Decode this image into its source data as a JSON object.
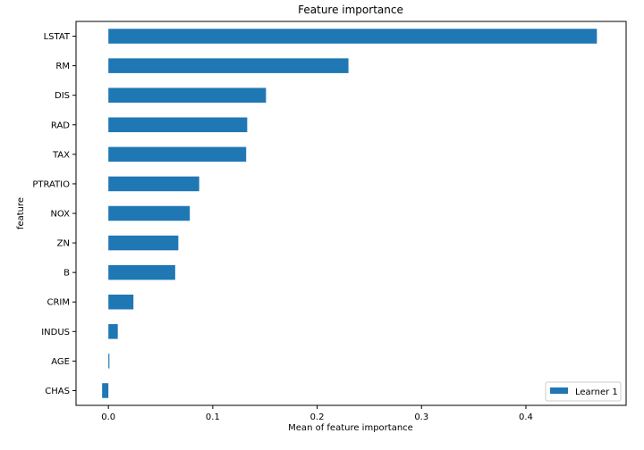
{
  "chart_data": {
    "type": "bar",
    "orientation": "horizontal",
    "title": "Feature importance",
    "xlabel": "Mean of feature importance",
    "ylabel": "feature",
    "categories": [
      "LSTAT",
      "RM",
      "DIS",
      "RAD",
      "TAX",
      "PTRATIO",
      "NOX",
      "ZN",
      "B",
      "CRIM",
      "INDUS",
      "AGE",
      "CHAS"
    ],
    "series": [
      {
        "name": "Learner 1",
        "color": "#1f77b4",
        "values": [
          0.468,
          0.23,
          0.151,
          0.133,
          0.132,
          0.087,
          0.078,
          0.067,
          0.064,
          0.024,
          0.009,
          0.001,
          -0.006
        ]
      }
    ],
    "xlim": [
      -0.031,
      0.496
    ],
    "xticks": [
      0.0,
      0.1,
      0.2,
      0.3,
      0.4
    ],
    "xtick_labels": [
      "0.0",
      "0.1",
      "0.2",
      "0.3",
      "0.4"
    ],
    "grid": false,
    "legend_position": "bottom-right"
  }
}
